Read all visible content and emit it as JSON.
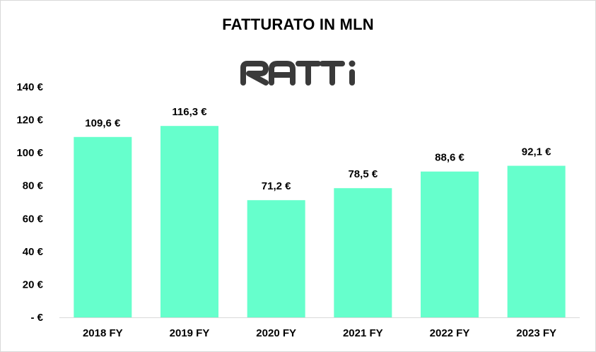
{
  "chart_data": {
    "type": "bar",
    "title": "FATTURATO IN MLN",
    "logo_text": "RATTI",
    "categories": [
      "2018 FY",
      "2019 FY",
      "2020 FY",
      "2021 FY",
      "2022 FY",
      "2023 FY"
    ],
    "values": [
      109.6,
      116.3,
      71.2,
      78.5,
      88.6,
      92.1
    ],
    "data_labels": [
      "109,6 €",
      "116,3 €",
      "71,2 €",
      "78,5 €",
      "88,6 €",
      "92,1 €"
    ],
    "y_ticks": [
      0,
      20,
      40,
      60,
      80,
      100,
      120,
      140
    ],
    "y_tick_labels": [
      "- €",
      "20 €",
      "40 €",
      "60 €",
      "80 €",
      "100 €",
      "120 €",
      "140 €"
    ],
    "ylim": [
      0,
      140
    ],
    "grid": false,
    "legend": "none",
    "xlabel": "",
    "ylabel": "",
    "colors": {
      "bar": "#66FFCC",
      "axis": "#d9d9d9",
      "logo": "#3a3a3a"
    }
  }
}
